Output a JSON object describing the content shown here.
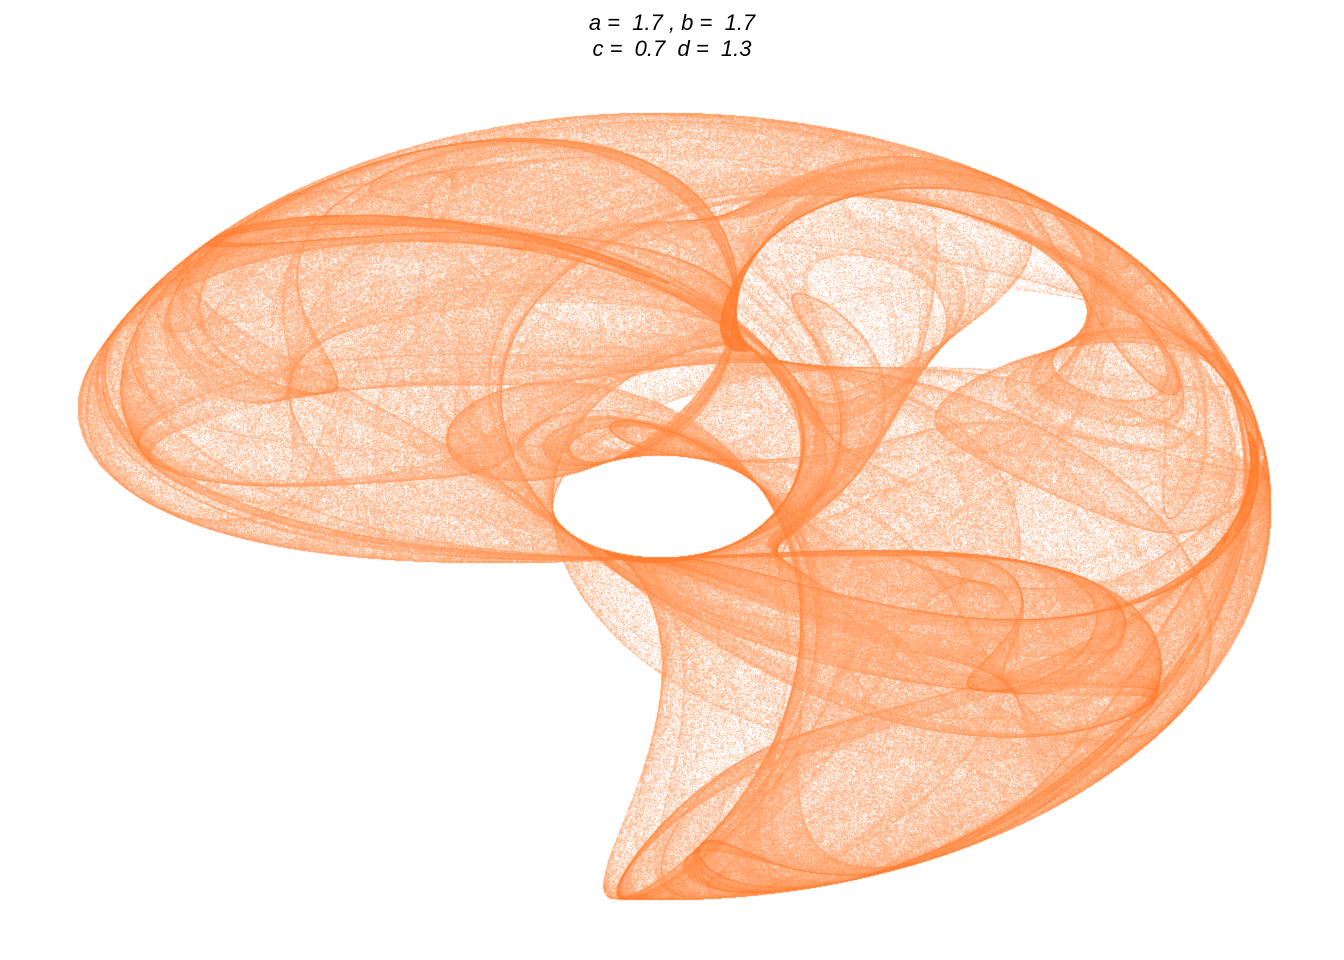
{
  "title": {
    "line1": "a =  1.7 , b =  1.7",
    "line2": "c =  0.7  d =  1.3"
  },
  "chart_data": {
    "type": "scatter",
    "title": "a =  1.7 , b =  1.7\n c =  0.7  d =  1.3",
    "xlabel": "",
    "ylabel": "",
    "grid": false,
    "axes_visible": false,
    "point_color": "#FF7F32",
    "background_color": "#FFFFFF",
    "generator": "clifford-attractor",
    "parameters": {
      "a": 1.7,
      "b": 1.7,
      "c": 0.7,
      "d": 1.3
    }
  }
}
